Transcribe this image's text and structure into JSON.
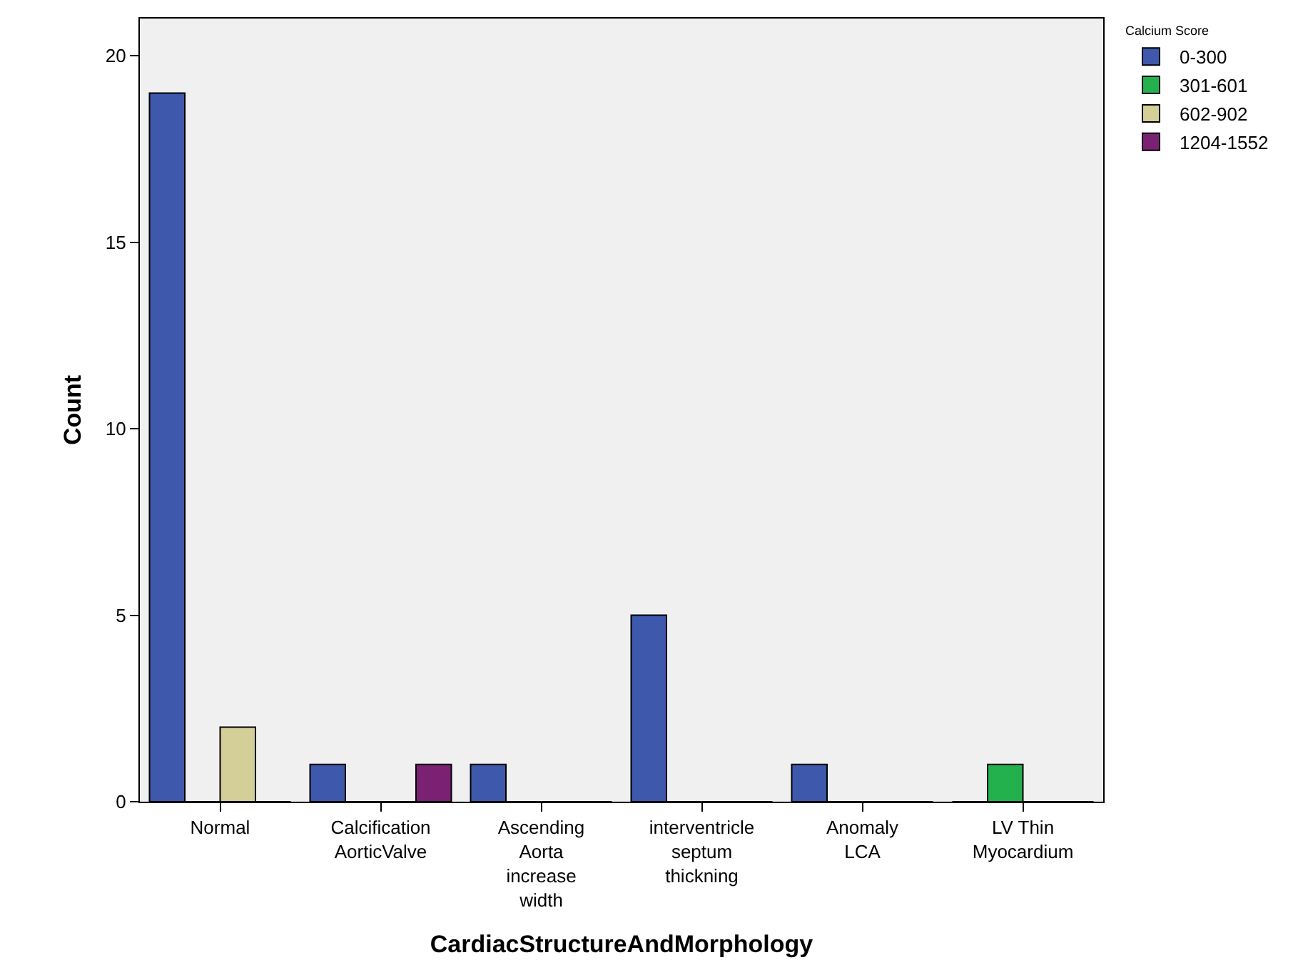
{
  "chart_data": {
    "type": "bar",
    "xlabel": "CardiacStructureAndMorphology",
    "ylabel": "Count",
    "legend_title": "Calcium Score",
    "categories": [
      "Normal",
      "Calcification AorticValve",
      "Ascending Aorta increase width",
      "interventricle septum thickning",
      "Anomaly LCA",
      "LV Thin Myocardium"
    ],
    "series": [
      {
        "name": "0-300",
        "color": "#3e58ac",
        "values": [
          19,
          1,
          1,
          5,
          1,
          0
        ]
      },
      {
        "name": "301-601",
        "color": "#22b14c",
        "values": [
          0,
          0,
          0,
          0,
          0,
          1
        ]
      },
      {
        "name": "602-902",
        "color": "#d4ce98",
        "values": [
          2,
          0,
          0,
          0,
          0,
          0
        ]
      },
      {
        "name": "1204-1552",
        "color": "#7b2174",
        "values": [
          0,
          1,
          0,
          0,
          0,
          0
        ]
      }
    ],
    "ylim": [
      0,
      21
    ],
    "yticks": [
      0,
      5,
      10,
      15,
      20
    ],
    "grid": false,
    "legend": "top right"
  }
}
